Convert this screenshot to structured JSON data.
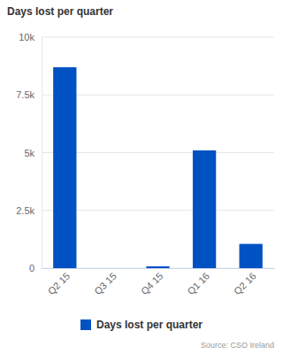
{
  "chart_data": {
    "type": "bar",
    "title": "Days lost per quarter",
    "categories": [
      "Q2 15",
      "Q3 15",
      "Q4 15",
      "Q1 16",
      "Q2 16"
    ],
    "series": [
      {
        "name": "Days lost per quarter",
        "color": "#0052c2",
        "values": [
          8700,
          0,
          80,
          5100,
          1050
        ]
      }
    ],
    "ylim": [
      0,
      10000
    ],
    "yticks": [
      0,
      {
        "value": 2500,
        "label": "2.5k"
      },
      {
        "value": 5000,
        "label": "5k"
      },
      {
        "value": 7500,
        "label": "7.5k"
      },
      {
        "value": 10000,
        "label": "10k"
      }
    ],
    "grid": true,
    "legend": "bottom",
    "source": "Source: CSO Ireland"
  }
}
